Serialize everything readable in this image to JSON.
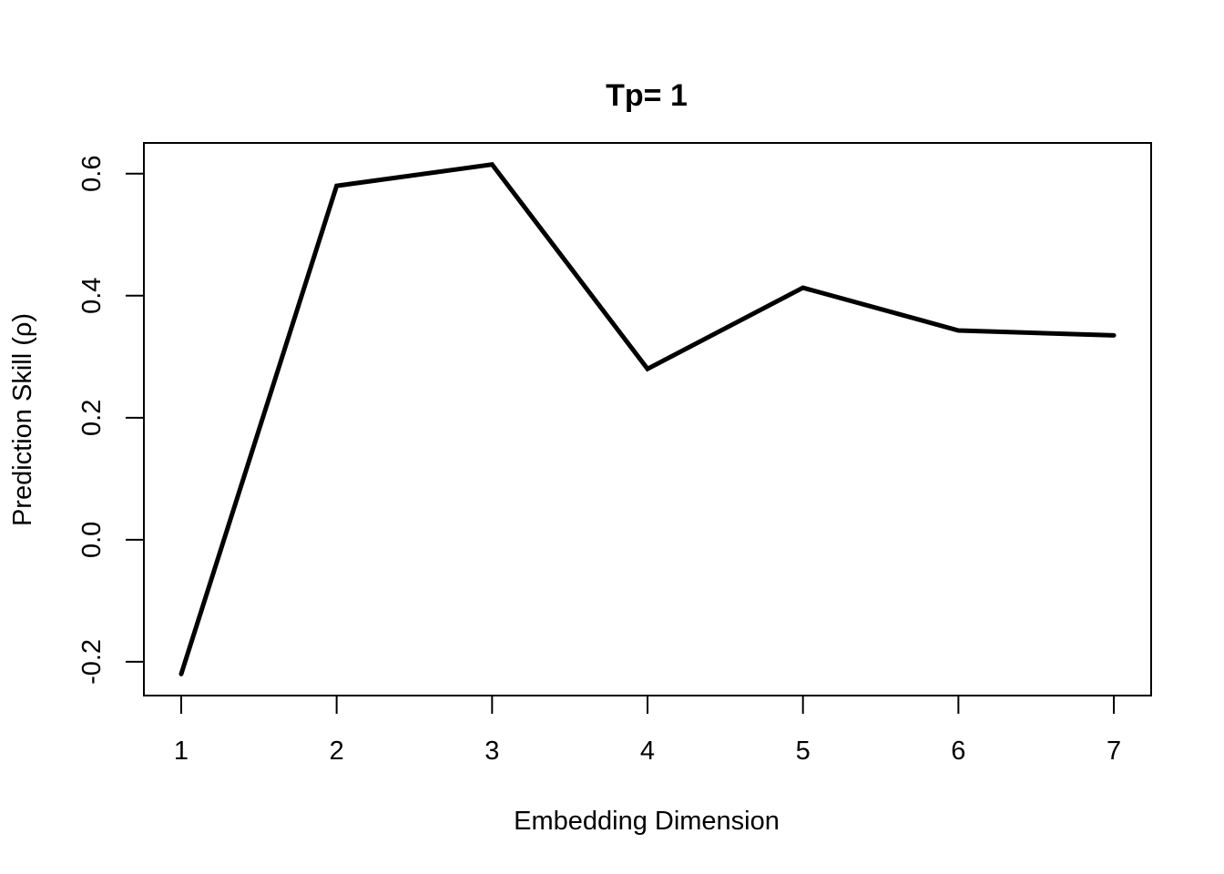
{
  "chart_data": {
    "type": "line",
    "title": "Tp= 1",
    "xlabel": "Embedding Dimension",
    "ylabel": "Prediction Skill (ρ)",
    "x": [
      1,
      2,
      3,
      4,
      5,
      6,
      7
    ],
    "series": [
      {
        "values": [
          -0.22,
          0.58,
          0.615,
          0.28,
          0.413,
          0.343,
          0.335
        ],
        "color": "#000000"
      }
    ],
    "xticks": [
      1,
      2,
      3,
      4,
      5,
      6,
      7
    ],
    "xtick_labels": [
      "1",
      "2",
      "3",
      "4",
      "5",
      "6",
      "7"
    ],
    "yticks": [
      -0.2,
      0.0,
      0.2,
      0.4,
      0.6
    ],
    "ytick_labels": [
      "-0.2",
      "0.0",
      "0.2",
      "0.4",
      "0.6"
    ],
    "xlim": [
      0.76,
      7.24
    ],
    "ylim": [
      -0.2553,
      0.6503
    ],
    "grid": false,
    "legend": "none"
  }
}
